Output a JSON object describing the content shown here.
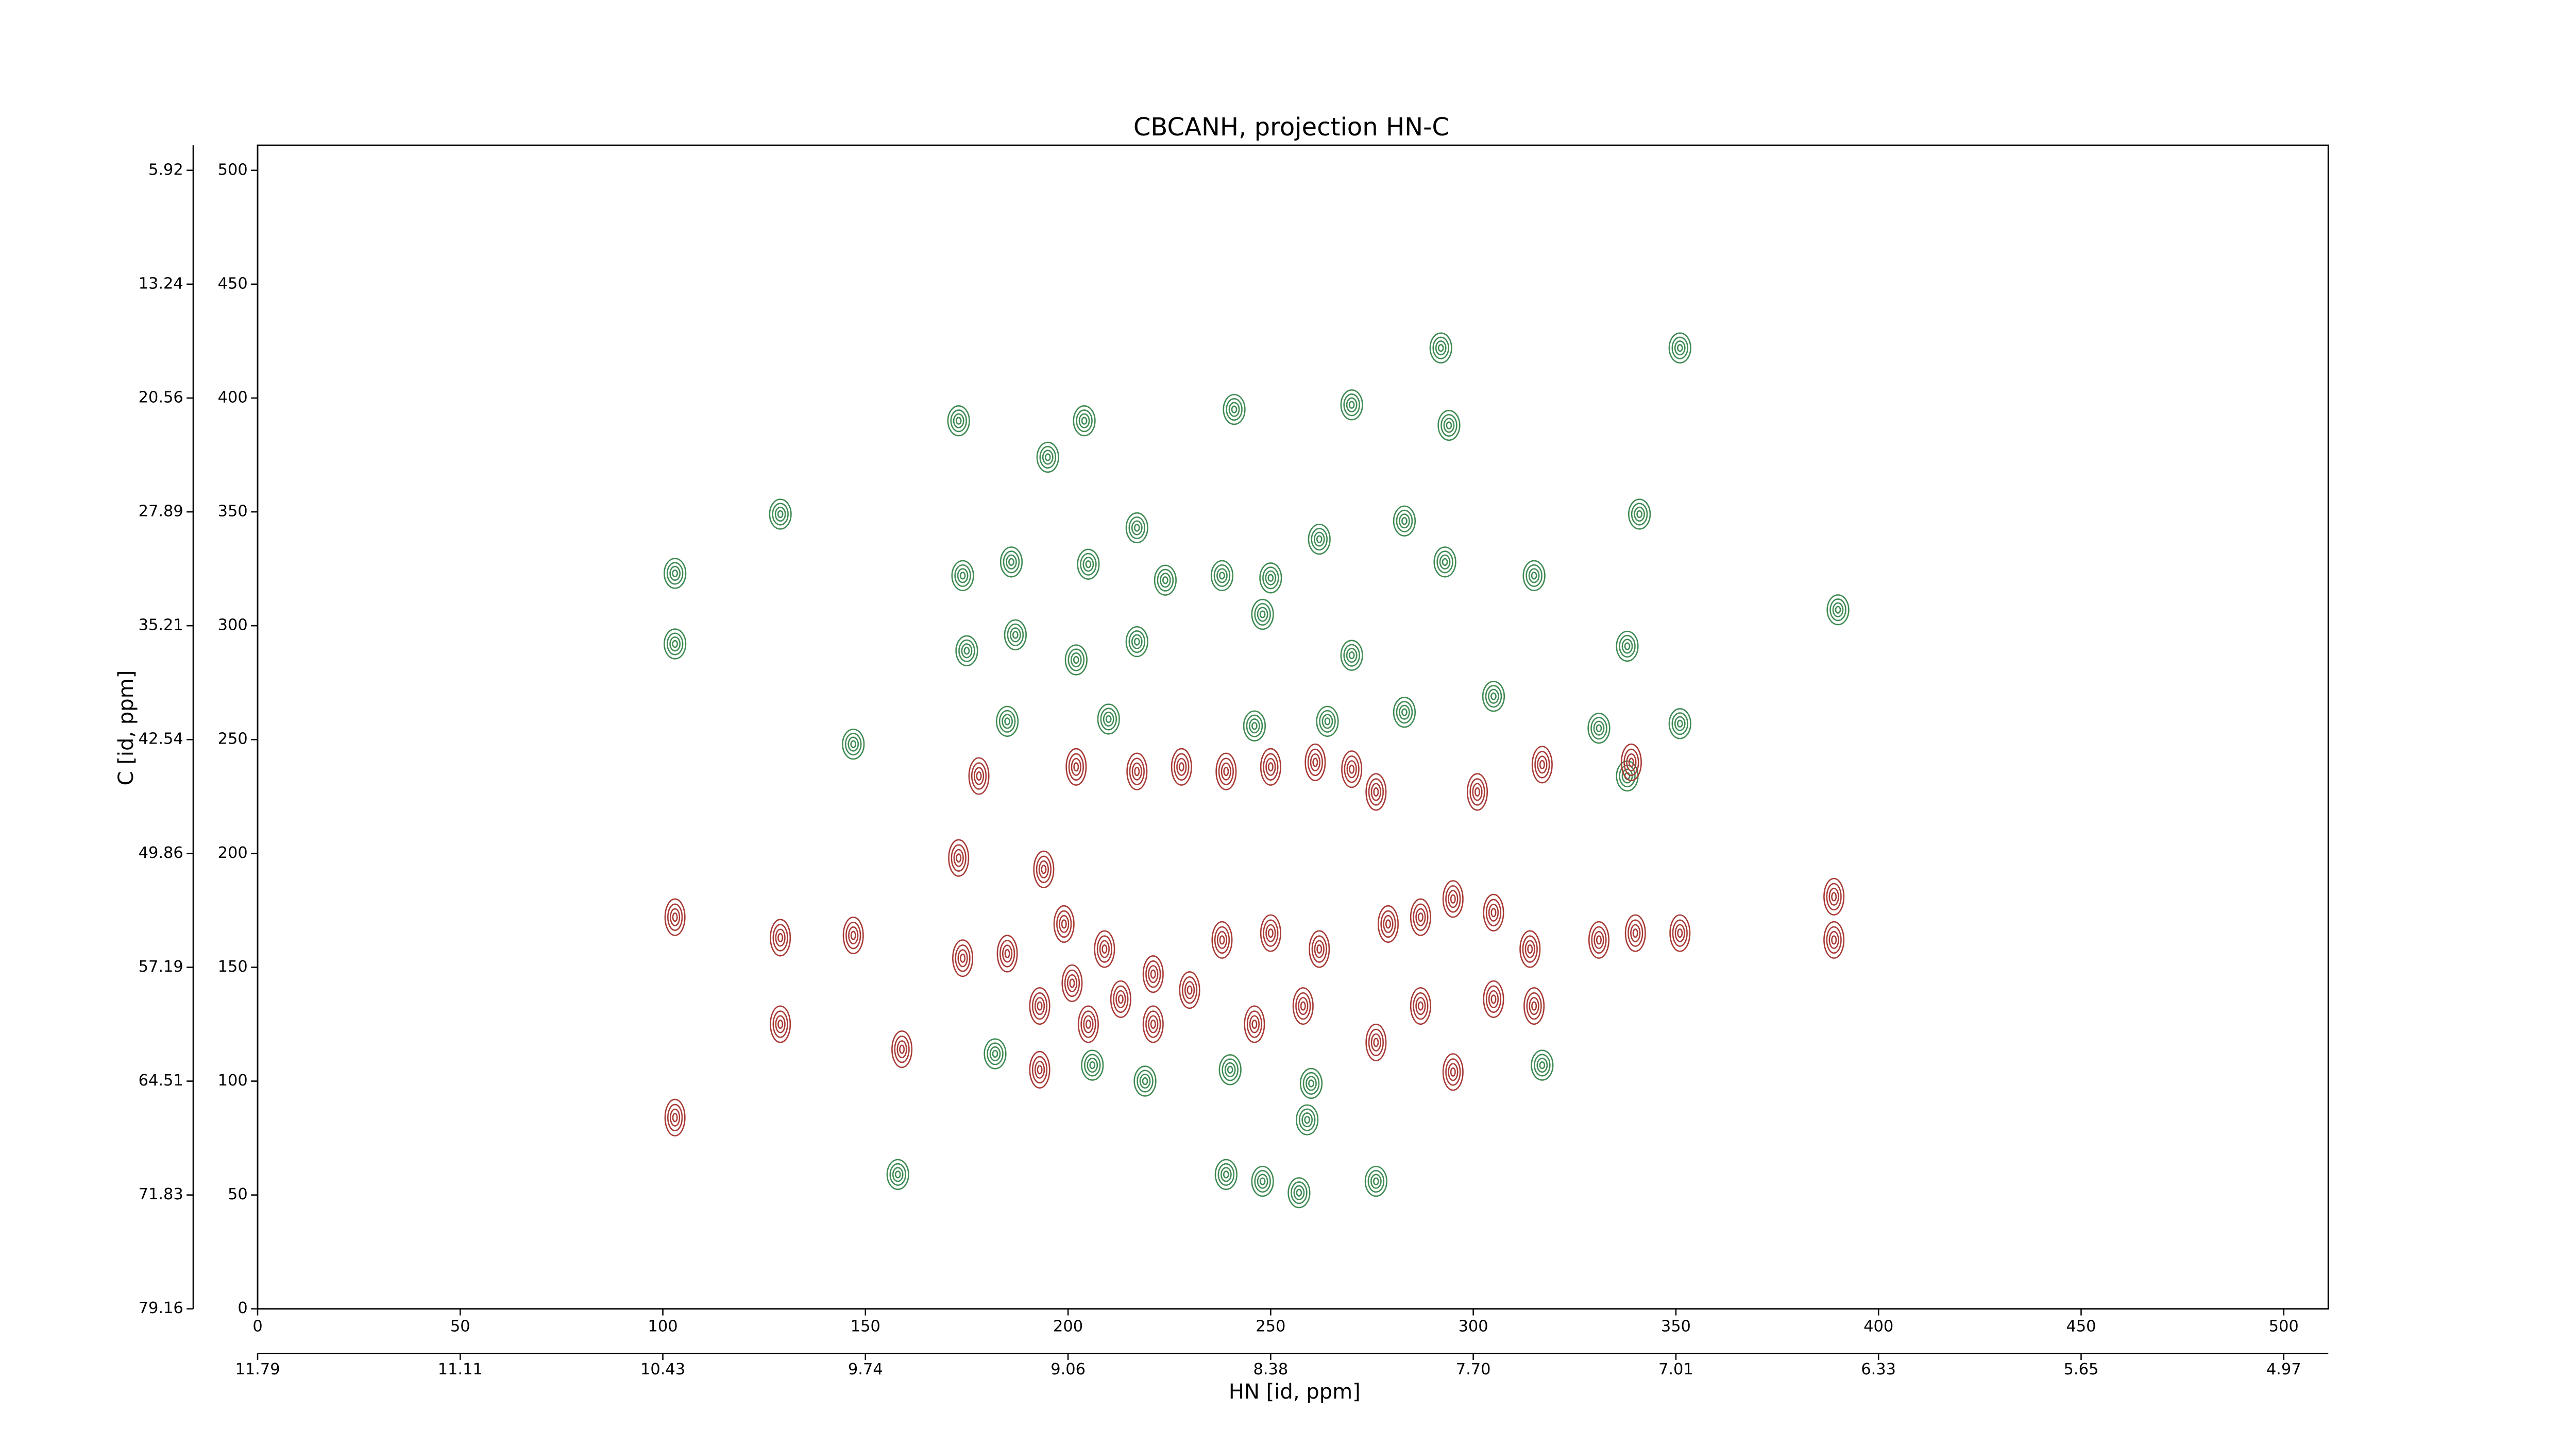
{
  "chart_data": {
    "type": "contour",
    "title": "CBCANH, projection HN-C",
    "x_label": "HN [id, ppm]",
    "y_label": "C [id, ppm]",
    "xlim": [
      0,
      511
    ],
    "ylim": [
      0,
      511
    ],
    "xticks": [
      0,
      50,
      100,
      150,
      200,
      250,
      300,
      350,
      400,
      450,
      500
    ],
    "yticks": [
      0,
      50,
      100,
      150,
      200,
      250,
      300,
      350,
      400,
      450,
      500
    ],
    "x2ticks": [
      {
        "value": 0,
        "label": "11.79"
      },
      {
        "value": 50,
        "label": "11.11"
      },
      {
        "value": 100,
        "label": "10.43"
      },
      {
        "value": 150,
        "label": "9.74"
      },
      {
        "value": 200,
        "label": "9.06"
      },
      {
        "value": 250,
        "label": "8.38"
      },
      {
        "value": 300,
        "label": "7.70"
      },
      {
        "value": 350,
        "label": "7.01"
      },
      {
        "value": 400,
        "label": "6.33"
      },
      {
        "value": 450,
        "label": "5.65"
      },
      {
        "value": 500,
        "label": "4.97"
      }
    ],
    "y2ticks": [
      {
        "value": 0,
        "label": "79.16"
      },
      {
        "value": 50,
        "label": "71.83"
      },
      {
        "value": 100,
        "label": "64.51"
      },
      {
        "value": 150,
        "label": "57.19"
      },
      {
        "value": 200,
        "label": "49.86"
      },
      {
        "value": 250,
        "label": "42.54"
      },
      {
        "value": 300,
        "label": "35.21"
      },
      {
        "value": 350,
        "label": "27.89"
      },
      {
        "value": 400,
        "label": "20.56"
      },
      {
        "value": 450,
        "label": "13.24"
      },
      {
        "value": 500,
        "label": "5.92"
      }
    ],
    "series": [
      {
        "color": "#3f8a52",
        "x": [
          173,
          195,
          204,
          241,
          270,
          294,
          292,
          351,
          129,
          217,
          283,
          341,
          262,
          174,
          186,
          205,
          224,
          238,
          250,
          293,
          315,
          103,
          390,
          187,
          217,
          248,
          103,
          175,
          202,
          270,
          338,
          185,
          210,
          246,
          264,
          283,
          305,
          331,
          351,
          147,
          338,
          206,
          219,
          240,
          260,
          259,
          239,
          248,
          276,
          158,
          182,
          317,
          257
        ],
        "values": [
          390,
          374,
          390,
          395,
          397,
          388,
          422,
          422,
          349,
          343,
          346,
          349,
          338,
          322,
          328,
          327,
          320,
          322,
          321,
          328,
          322,
          323,
          307,
          296,
          293,
          305,
          292,
          289,
          285,
          287,
          291,
          258,
          259,
          256,
          258,
          262,
          269,
          255,
          257,
          248,
          234,
          107,
          100,
          105,
          99,
          83,
          59,
          56,
          56,
          59,
          112,
          107,
          51
        ]
      },
      {
        "color": "#a83a36",
        "x": [
          178,
          202,
          217,
          228,
          239,
          250,
          261,
          270,
          276,
          301,
          317,
          339,
          173,
          194,
          103,
          129,
          147,
          174,
          185,
          199,
          209,
          221,
          238,
          250,
          262,
          279,
          287,
          295,
          305,
          314,
          331,
          340,
          351,
          389,
          389,
          193,
          205,
          221,
          246,
          258,
          276,
          287,
          305,
          315,
          129,
          159,
          193,
          295,
          103,
          201,
          213,
          230
        ],
        "values": [
          234,
          238,
          236,
          238,
          236,
          238,
          240,
          237,
          227,
          227,
          239,
          240,
          198,
          193,
          172,
          163,
          164,
          154,
          156,
          169,
          158,
          147,
          162,
          165,
          158,
          169,
          172,
          180,
          174,
          158,
          162,
          165,
          165,
          181,
          162,
          133,
          125,
          125,
          125,
          133,
          117,
          133,
          136,
          133,
          125,
          114,
          105,
          104,
          84,
          143,
          136,
          140
        ]
      }
    ]
  }
}
